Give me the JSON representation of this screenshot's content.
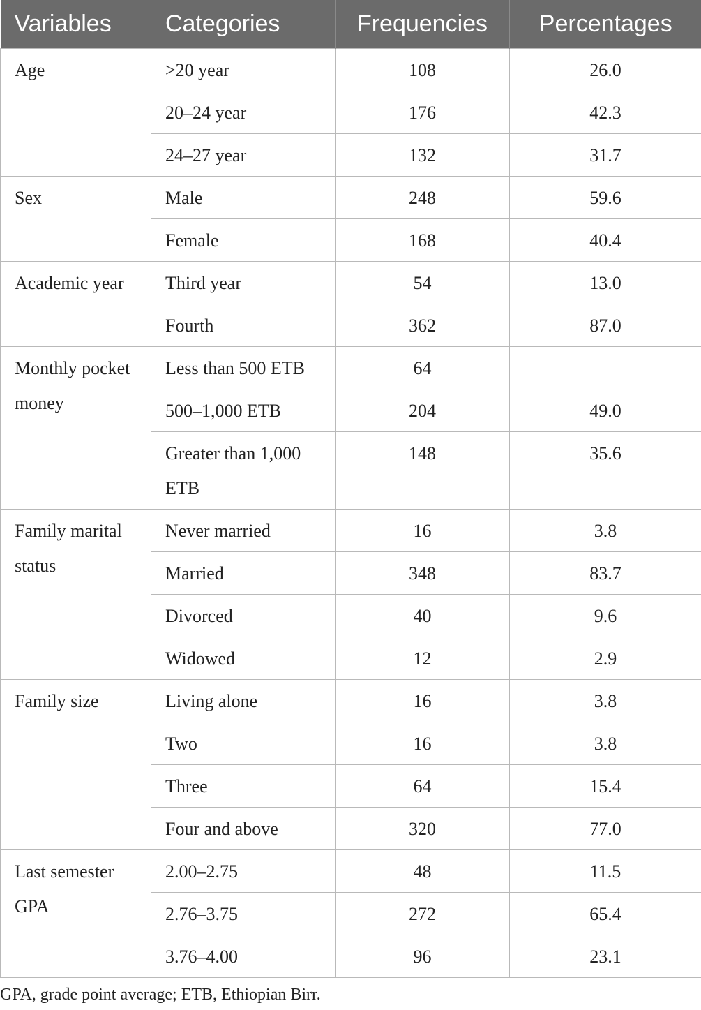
{
  "table": {
    "headers": [
      "Variables",
      "Categories",
      "Frequencies",
      "Percentages"
    ],
    "groups": [
      {
        "variable": "Age",
        "rows": [
          {
            "category": ">20 year",
            "frequency": "108",
            "percentage": "26.0"
          },
          {
            "category": "20–24 year",
            "frequency": "176",
            "percentage": "42.3"
          },
          {
            "category": "24–27 year",
            "frequency": "132",
            "percentage": "31.7"
          }
        ]
      },
      {
        "variable": "Sex",
        "rows": [
          {
            "category": "Male",
            "frequency": "248",
            "percentage": "59.6"
          },
          {
            "category": "Female",
            "frequency": "168",
            "percentage": "40.4"
          }
        ]
      },
      {
        "variable": "Academic year",
        "rows": [
          {
            "category": "Third year",
            "frequency": "54",
            "percentage": "13.0"
          },
          {
            "category": "Fourth",
            "frequency": "362",
            "percentage": "87.0"
          }
        ]
      },
      {
        "variable": "Monthly pocket money",
        "rows": [
          {
            "category": "Less than 500 ETB",
            "frequency": "64",
            "percentage": ""
          },
          {
            "category": "500–1,000 ETB",
            "frequency": "204",
            "percentage": "49.0"
          },
          {
            "category": "Greater than 1,000 ETB",
            "frequency": "148",
            "percentage": "35.6"
          }
        ]
      },
      {
        "variable": "Family marital status",
        "rows": [
          {
            "category": "Never married",
            "frequency": "16",
            "percentage": "3.8"
          },
          {
            "category": "Married",
            "frequency": "348",
            "percentage": "83.7"
          },
          {
            "category": "Divorced",
            "frequency": "40",
            "percentage": "9.6"
          },
          {
            "category": "Widowed",
            "frequency": "12",
            "percentage": "2.9"
          }
        ]
      },
      {
        "variable": "Family size",
        "rows": [
          {
            "category": "Living alone",
            "frequency": "16",
            "percentage": "3.8"
          },
          {
            "category": "Two",
            "frequency": "16",
            "percentage": "3.8"
          },
          {
            "category": "Three",
            "frequency": "64",
            "percentage": "15.4"
          },
          {
            "category": "Four and above",
            "frequency": "320",
            "percentage": "77.0"
          }
        ]
      },
      {
        "variable": "Last semester GPA",
        "rows": [
          {
            "category": "2.00–2.75",
            "frequency": "48",
            "percentage": "11.5"
          },
          {
            "category": "2.76–3.75",
            "frequency": "272",
            "percentage": "65.4"
          },
          {
            "category": "3.76–4.00",
            "frequency": "96",
            "percentage": "23.1"
          }
        ]
      }
    ]
  },
  "footnote": "GPA, grade point average; ETB, Ethiopian Birr."
}
